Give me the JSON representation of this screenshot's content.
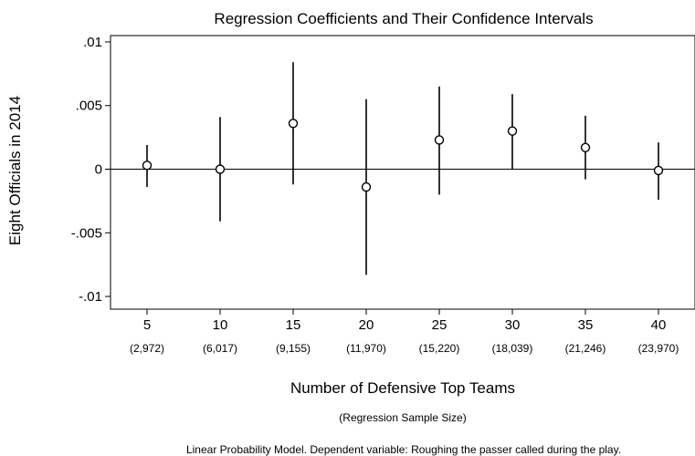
{
  "chart_data": {
    "type": "scatter",
    "title": "Regression Coefficients and Their Confidence Intervals",
    "xlabel": "Number of Defensive Top Teams",
    "xlabel_sub": "(Regression Sample Size)",
    "ylabel": "Eight Officials in 2014",
    "note": "Linear Probability Model. Dependent variable: Roughing the passer called during the play.",
    "ylim": [
      -0.011,
      0.0105
    ],
    "xlim": [
      0,
      8
    ],
    "yticks": [
      {
        "value": 0.01,
        "label": ".01"
      },
      {
        "value": 0.005,
        "label": ".005"
      },
      {
        "value": 0,
        "label": "0"
      },
      {
        "value": -0.005,
        "label": "-.005"
      },
      {
        "value": -0.01,
        "label": "-.01"
      }
    ],
    "categories": [
      "5",
      "10",
      "15",
      "20",
      "25",
      "30",
      "35",
      "40"
    ],
    "sample_sizes": [
      "(2,972)",
      "(6,017)",
      "(9,155)",
      "(11,970)",
      "(15,220)",
      "(18,039)",
      "(21,246)",
      "(23,970)"
    ],
    "series": [
      {
        "estimates": [
          0.0003,
          0.0,
          0.0036,
          -0.0014,
          0.0023,
          0.003,
          0.0017,
          -0.0001
        ],
        "ci_low": [
          -0.0014,
          -0.0041,
          -0.0012,
          -0.0083,
          -0.002,
          0.0,
          -0.0008,
          -0.0024
        ],
        "ci_high": [
          0.0019,
          0.0041,
          0.0084,
          0.0055,
          0.0065,
          0.0059,
          0.0042,
          0.0021
        ]
      }
    ],
    "reference_line": 0,
    "grid": false,
    "colors": {
      "marks": "#000000",
      "background": "#ffffff"
    }
  }
}
